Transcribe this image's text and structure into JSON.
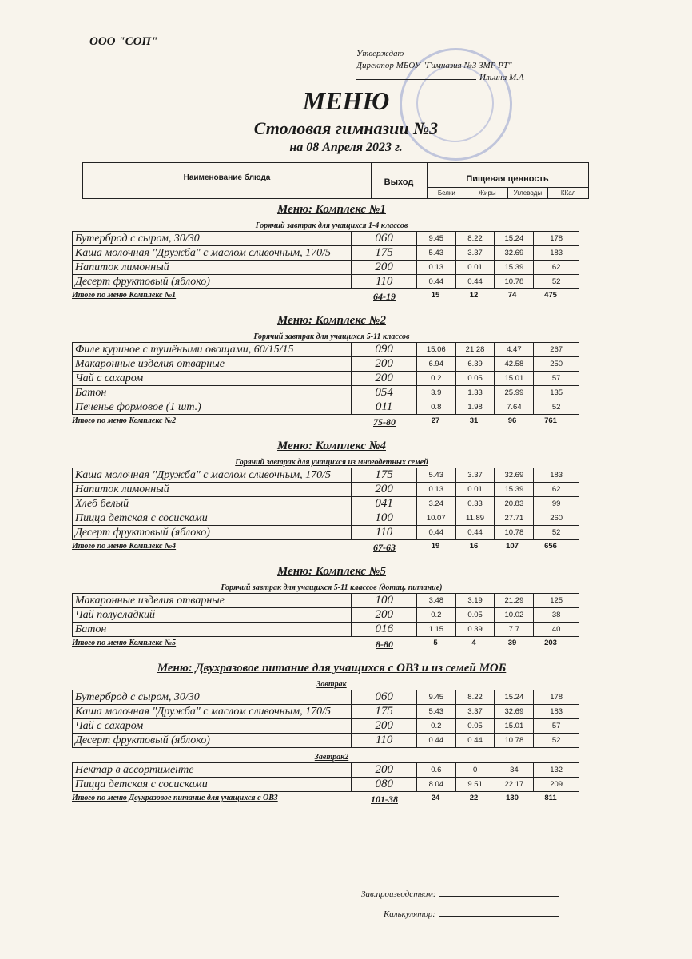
{
  "org": "ООО \"СОП\"",
  "approval": {
    "line1": "Утверждаю",
    "line2": "Директор МБОУ \"Гимназия №3 ЗМР РТ\"",
    "name": "Ильина М.А"
  },
  "title": "МЕНЮ",
  "subtitle": "Столовая гимназии №3",
  "date": "на 08 Апреля 2023 г.",
  "header": {
    "name": "Наименование блюда",
    "output": "Выход",
    "nutrition": "Пищевая ценность",
    "cols": [
      "Белки",
      "Жиры",
      "Углеводы",
      "ККал"
    ]
  },
  "sections": [
    {
      "title": "Меню: Комплекс №1",
      "groups": [
        {
          "subtitle": "Горячий завтрак для учащихся 1-4 классов",
          "rows": [
            [
              "Бутерброд с сыром, 30/30",
              "060",
              "9.45",
              "8.22",
              "15.24",
              "178"
            ],
            [
              "Каша молочная \"Дружба\" с маслом сливочным, 170/5",
              "175",
              "5.43",
              "3.37",
              "32.69",
              "183"
            ],
            [
              "Напиток лимонный",
              "200",
              "0.13",
              "0.01",
              "15.39",
              "62"
            ],
            [
              "Десерт фруктовый (яблоко)",
              "110",
              "0.44",
              "0.44",
              "10.78",
              "52"
            ]
          ]
        }
      ],
      "total": [
        "Итого по меню Комплекс №1",
        "64-19",
        "15",
        "12",
        "74",
        "475"
      ]
    },
    {
      "title": "Меню: Комплекс №2",
      "groups": [
        {
          "subtitle": "Горячий завтрак для учащихся 5-11 классов",
          "rows": [
            [
              "Филе куриное с тушёными овощами, 60/15/15",
              "090",
              "15.06",
              "21.28",
              "4.47",
              "267"
            ],
            [
              "Макаронные изделия отварные",
              "200",
              "6.94",
              "6.39",
              "42.58",
              "250"
            ],
            [
              "Чай с сахаром",
              "200",
              "0.2",
              "0.05",
              "15.01",
              "57"
            ],
            [
              "Батон",
              "054",
              "3.9",
              "1.33",
              "25.99",
              "135"
            ],
            [
              "Печенье формовое (1 шт.)",
              "011",
              "0.8",
              "1.98",
              "7.64",
              "52"
            ]
          ]
        }
      ],
      "total": [
        "Итого по меню Комплекс №2",
        "75-80",
        "27",
        "31",
        "96",
        "761"
      ]
    },
    {
      "title": "Меню: Комплекс №4",
      "groups": [
        {
          "subtitle": "Горячий завтрак для учащихся из многодетных семей",
          "rows": [
            [
              "Каша молочная \"Дружба\" с маслом сливочным, 170/5",
              "175",
              "5.43",
              "3.37",
              "32.69",
              "183"
            ],
            [
              "Напиток лимонный",
              "200",
              "0.13",
              "0.01",
              "15.39",
              "62"
            ],
            [
              "Хлеб белый",
              "041",
              "3.24",
              "0.33",
              "20.83",
              "99"
            ],
            [
              "Пицца детская с сосисками",
              "100",
              "10.07",
              "11.89",
              "27.71",
              "260"
            ],
            [
              "Десерт фруктовый (яблоко)",
              "110",
              "0.44",
              "0.44",
              "10.78",
              "52"
            ]
          ]
        }
      ],
      "total": [
        "Итого по меню Комплекс №4",
        "67-63",
        "19",
        "16",
        "107",
        "656"
      ]
    },
    {
      "title": "Меню: Комплекс №5",
      "groups": [
        {
          "subtitle": "Горячий завтрак для учащихся 5-11 классов (дотац. питание)",
          "rows": [
            [
              "Макаронные изделия отварные",
              "100",
              "3.48",
              "3.19",
              "21.29",
              "125"
            ],
            [
              "Чай полусладкий",
              "200",
              "0.2",
              "0.05",
              "10.02",
              "38"
            ],
            [
              "Батон",
              "016",
              "1.15",
              "0.39",
              "7.7",
              "40"
            ]
          ]
        }
      ],
      "total": [
        "Итого по меню Комплекс №5",
        "8-80",
        "5",
        "4",
        "39",
        "203"
      ]
    },
    {
      "title": "Меню: Двухразовое питание для учащихся с ОВЗ и из семей МОБ",
      "groups": [
        {
          "subtitle": "Завтрак",
          "rows": [
            [
              "Бутерброд с сыром, 30/30",
              "060",
              "9.45",
              "8.22",
              "15.24",
              "178"
            ],
            [
              "Каша молочная \"Дружба\" с маслом сливочным, 170/5",
              "175",
              "5.43",
              "3.37",
              "32.69",
              "183"
            ],
            [
              "Чай с сахаром",
              "200",
              "0.2",
              "0.05",
              "15.01",
              "57"
            ],
            [
              "Десерт фруктовый (яблоко)",
              "110",
              "0.44",
              "0.44",
              "10.78",
              "52"
            ]
          ]
        },
        {
          "subtitle": "Завтрак2",
          "rows": [
            [
              "Нектар в ассортименте",
              "200",
              "0.6",
              "0",
              "34",
              "132"
            ],
            [
              "Пицца детская с сосисками",
              "080",
              "8.04",
              "9.51",
              "22.17",
              "209"
            ]
          ]
        }
      ],
      "total": [
        "Итого по меню Двухразовое питание для учащихся с ОВЗ",
        "101-38",
        "24",
        "22",
        "130",
        "811"
      ]
    }
  ],
  "signatures": {
    "production": "Зав.производством:",
    "calculator": "Калькулятор:"
  }
}
